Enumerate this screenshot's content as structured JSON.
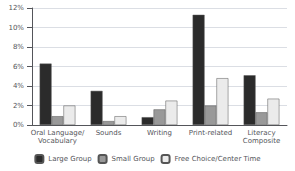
{
  "chart_data": {
    "type": "bar",
    "categories": [
      "Oral Language/\nVocabulary",
      "Sounds",
      "Writing",
      "Print-related",
      "Literacy\nComposite"
    ],
    "series": [
      {
        "name": "Large Group",
        "color": "#2b2b2b",
        "values": [
          6.3,
          3.5,
          0.8,
          11.3,
          5.1
        ]
      },
      {
        "name": "Small Group",
        "color": "#999999",
        "values": [
          0.9,
          0.4,
          1.6,
          2.0,
          1.3
        ]
      },
      {
        "name": "Free Choice/Center Time",
        "color": "#ebebeb",
        "values": [
          2.0,
          0.9,
          2.5,
          4.8,
          2.7
        ]
      }
    ],
    "ylim": [
      0,
      12
    ],
    "yticks": [
      {
        "value": 0,
        "label": "0%"
      },
      {
        "value": 2,
        "label": "2%"
      },
      {
        "value": 4,
        "label": "4%"
      },
      {
        "value": 6,
        "label": "6%"
      },
      {
        "value": 8,
        "label": "8%"
      },
      {
        "value": 10,
        "label": "10%"
      },
      {
        "value": 12,
        "label": "12%"
      }
    ],
    "grid": true,
    "legend": "bottom"
  }
}
